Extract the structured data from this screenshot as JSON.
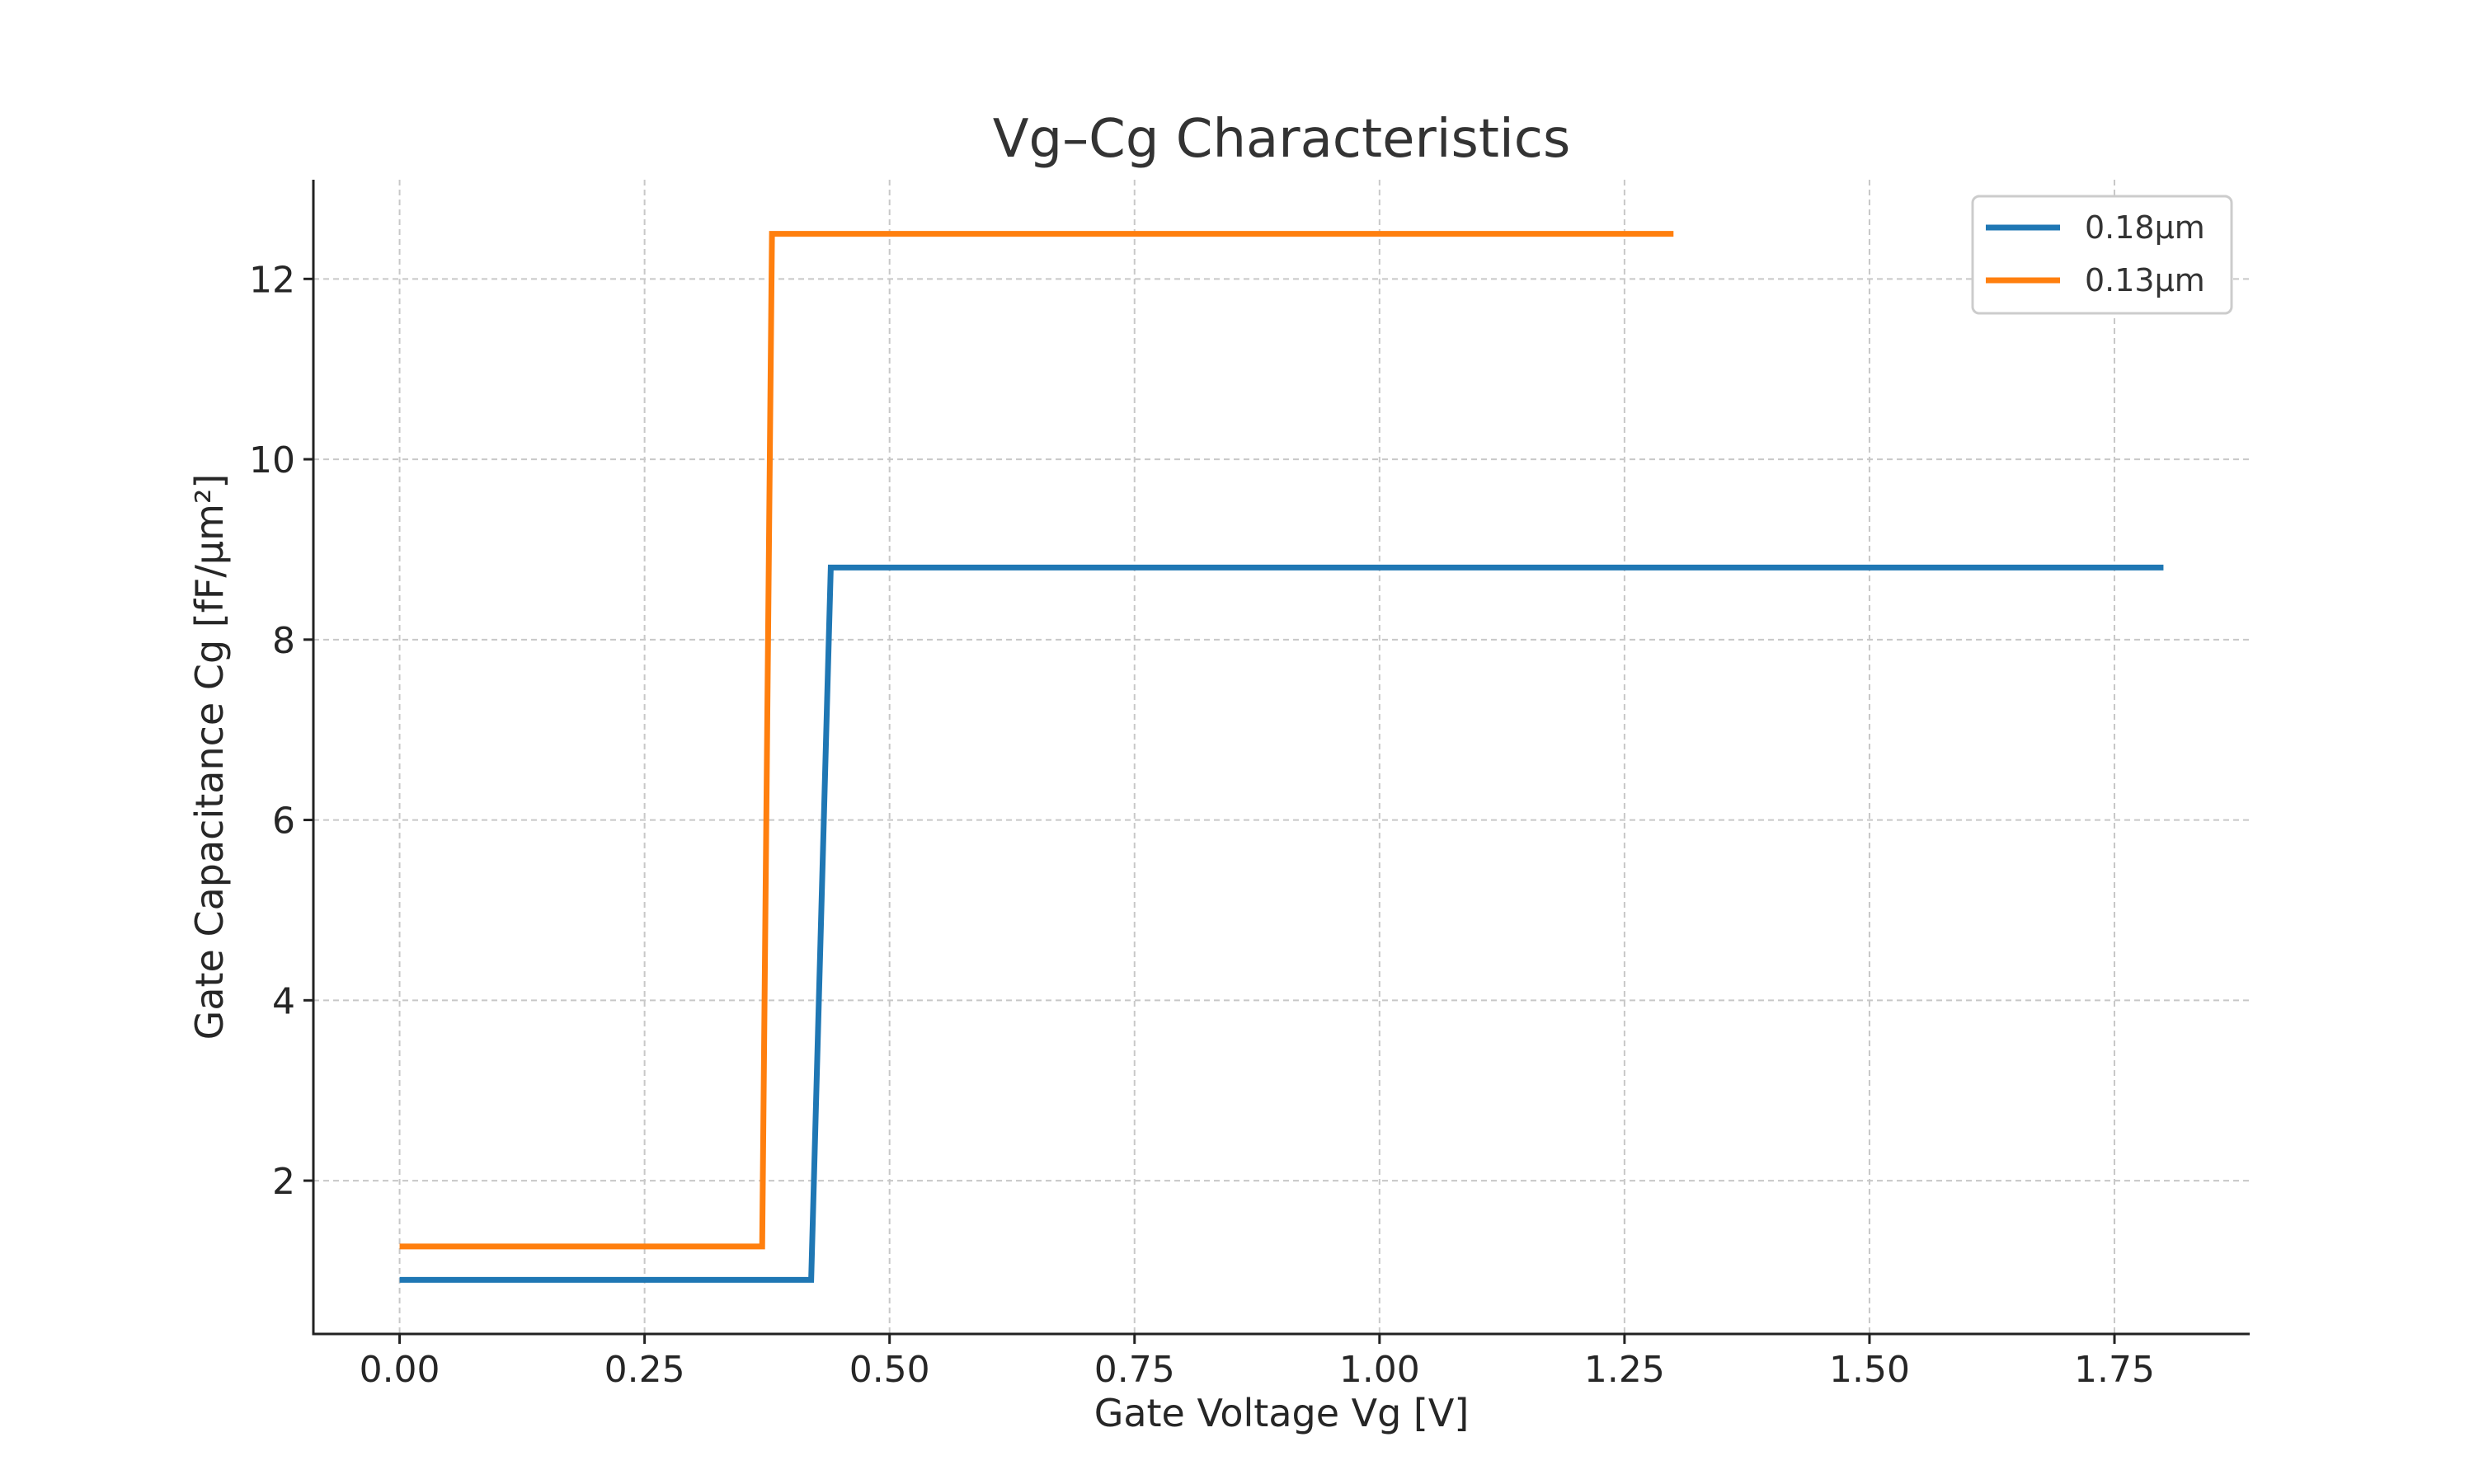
{
  "chart_data": {
    "type": "line",
    "title": "Vg–Cg Characteristics",
    "xlabel": "Gate Voltage Vg [V]",
    "ylabel": "Gate Capacitance Cg [fF/μm²]",
    "xlim": [
      -0.088,
      1.888
    ],
    "ylim": [
      0.3,
      13.1
    ],
    "xticks": [
      0.0,
      0.25,
      0.5,
      0.75,
      1.0,
      1.25,
      1.5,
      1.75
    ],
    "xtick_labels": [
      "0.00",
      "0.25",
      "0.50",
      "0.75",
      "1.00",
      "1.25",
      "1.50",
      "1.75"
    ],
    "yticks": [
      2,
      4,
      6,
      8,
      10,
      12
    ],
    "ytick_labels": [
      "2",
      "4",
      "6",
      "8",
      "10",
      "12"
    ],
    "grid": true,
    "legend_position": "top-right",
    "series": [
      {
        "name": "0.18μm",
        "color": "#1f77b4",
        "x": [
          0.0,
          0.42,
          0.44,
          1.8
        ],
        "y": [
          0.9,
          0.9,
          8.8,
          8.8
        ]
      },
      {
        "name": "0.13μm",
        "color": "#ff7f0e",
        "x": [
          0.0,
          0.37,
          0.38,
          1.3
        ],
        "y": [
          1.27,
          1.27,
          12.5,
          12.5
        ]
      }
    ]
  }
}
